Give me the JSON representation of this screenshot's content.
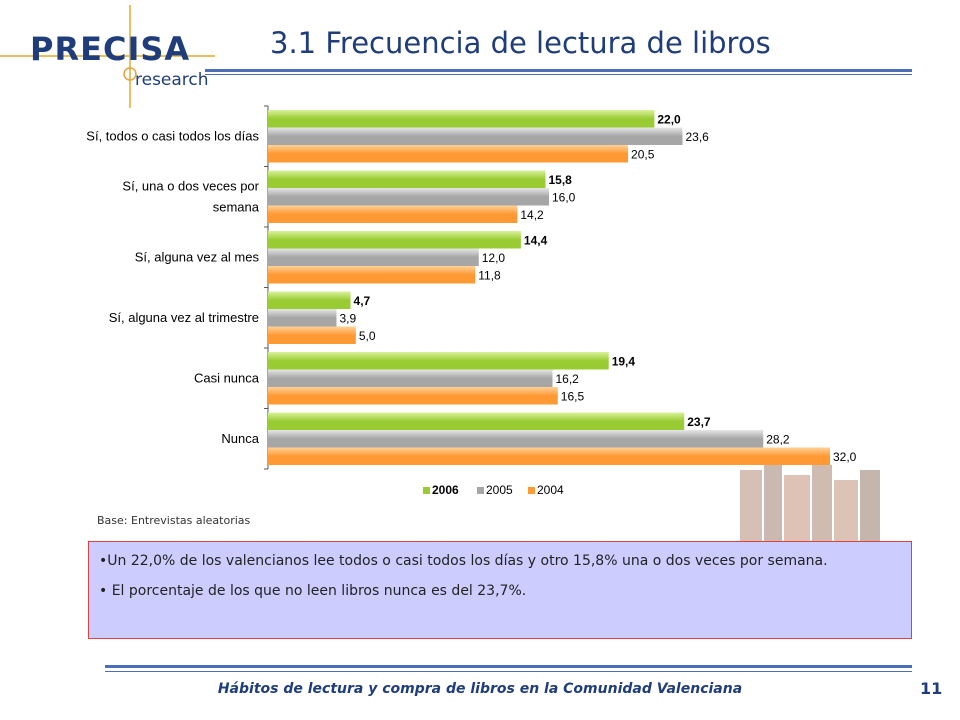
{
  "logo": {
    "text": "PRECISA",
    "sub": "research"
  },
  "title": "3.1 Frecuencia de lectura de libros",
  "base_note": "Base: Entrevistas aleatorias",
  "notes": [
    "•Un 22,0% de los valencianos lee todos o casi todos los días y otro 15,8% una o dos veces por semana.",
    "• El porcentaje de los que no leen libros nunca es del 23,7%."
  ],
  "footer": "Hábitos de lectura y compra de libros en la Comunidad Valenciana",
  "page_number": "11",
  "colors": {
    "s2006": "#99cc33",
    "s2005": "#a6a6a6",
    "s2004": "#ff9933",
    "brand": "#1f3d7a"
  },
  "chart_data": {
    "type": "bar",
    "orientation": "horizontal",
    "categories": [
      "Sí, todos o casi todos los días",
      "Sí, una o dos veces por semana",
      "Sí, alguna vez al mes",
      "Sí, alguna vez al trimestre",
      "Casi nunca",
      "Nunca"
    ],
    "series": [
      {
        "name": "2006",
        "values": [
          22.0,
          15.8,
          14.4,
          4.7,
          19.4,
          23.7
        ],
        "labels": [
          "22,0",
          "15,8",
          "14,4",
          "4,7",
          "19,4",
          "23,7"
        ]
      },
      {
        "name": "2005",
        "values": [
          23.6,
          16.0,
          12.0,
          3.9,
          16.2,
          28.2
        ],
        "labels": [
          "23,6",
          "16,0",
          "12,0",
          "3,9",
          "16,2",
          "28,2"
        ]
      },
      {
        "name": "2004",
        "values": [
          20.5,
          14.2,
          11.8,
          5.0,
          16.5,
          32.0
        ],
        "labels": [
          "20,5",
          "14,2",
          "11,8",
          "5,0",
          "16,5",
          "32,0"
        ]
      }
    ],
    "xlim": [
      0,
      32
    ],
    "grid": false,
    "legend": "bottom"
  }
}
